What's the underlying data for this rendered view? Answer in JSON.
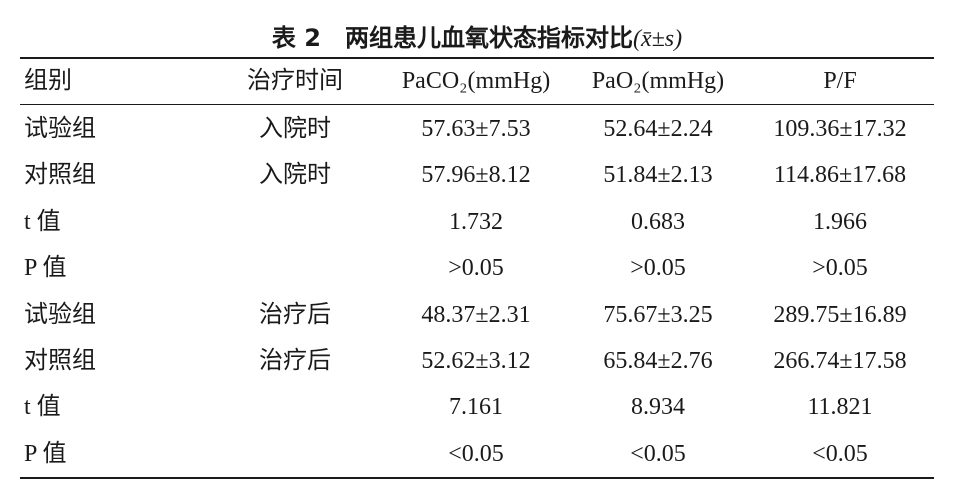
{
  "title": {
    "label": "表 2",
    "text": "两组患儿血氧状态指标对比",
    "stat": "(x̄±s)"
  },
  "table": {
    "header": [
      "组别",
      "治疗时间",
      "PaCO₂(mmHg)",
      "PaO₂(mmHg)",
      "P/F"
    ],
    "rows": [
      [
        "试验组",
        "入院时",
        "57.63±7.53",
        "52.64±2.24",
        "109.36±17.32"
      ],
      [
        "对照组",
        "入院时",
        "57.96±8.12",
        "51.84±2.13",
        "114.86±17.68"
      ],
      [
        "t 值",
        "",
        "1.732",
        "0.683",
        "1.966"
      ],
      [
        "P 值",
        "",
        ">0.05",
        ">0.05",
        ">0.05"
      ],
      [
        "试验组",
        "治疗后",
        "48.37±2.31",
        "75.67±3.25",
        "289.75±16.89"
      ],
      [
        "对照组",
        "治疗后",
        "52.62±3.12",
        "65.84±2.76",
        "266.74±17.58"
      ],
      [
        "t 值",
        "",
        "7.161",
        "8.934",
        "11.821"
      ],
      [
        "P 值",
        "",
        "<0.05",
        "<0.05",
        "<0.05"
      ]
    ]
  }
}
